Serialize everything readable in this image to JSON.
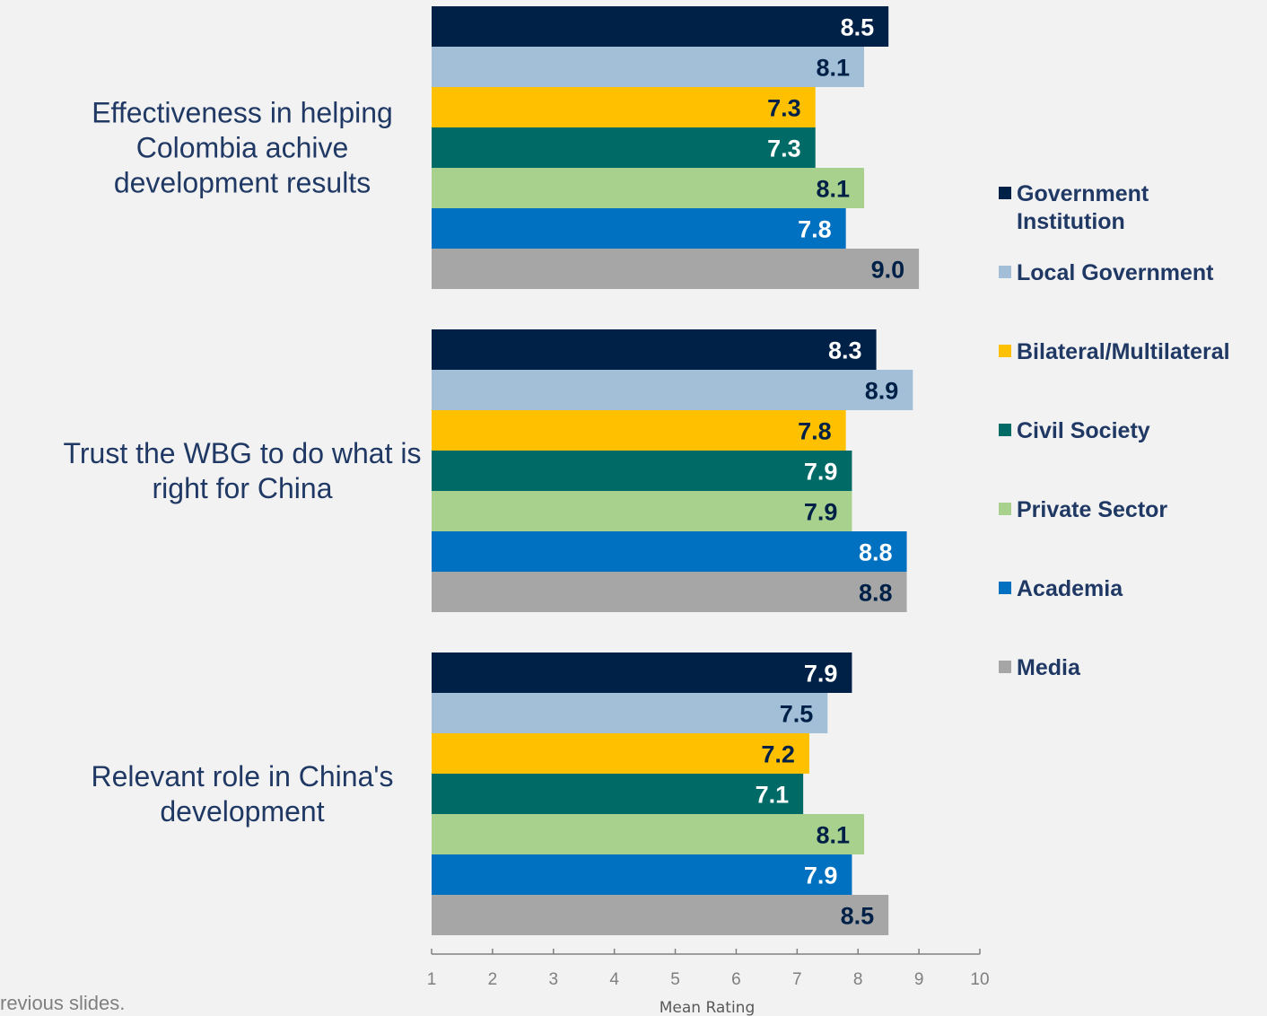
{
  "chart_data": {
    "type": "bar",
    "orientation": "horizontal",
    "categories": [
      "Effectiveness in helping Colombia achive development results",
      "Trust the WBG to do what is right for China",
      "Relevant role in China's development"
    ],
    "series": [
      {
        "name": "Government Institution",
        "color": "#002147",
        "label_color": "#ffffff",
        "values": [
          8.5,
          8.3,
          7.9
        ]
      },
      {
        "name": "Local Government",
        "color": "#a3bed7",
        "label_color": "#002147",
        "values": [
          8.1,
          8.9,
          7.5
        ]
      },
      {
        "name": "Bilateral/Multilateral",
        "color": "#ffc000",
        "label_color": "#002147",
        "values": [
          7.3,
          7.8,
          7.2
        ]
      },
      {
        "name": "Civil Society",
        "color": "#006a66",
        "label_color": "#ffffff",
        "values": [
          7.3,
          7.9,
          7.1
        ]
      },
      {
        "name": "Private Sector",
        "color": "#a9d18e",
        "label_color": "#002147",
        "values": [
          8.1,
          7.9,
          8.1
        ]
      },
      {
        "name": "Academia",
        "color": "#0070c0",
        "label_color": "#ffffff",
        "values": [
          7.8,
          8.8,
          7.9
        ]
      },
      {
        "name": "Media",
        "color": "#a6a6a6",
        "label_color": "#002147",
        "values": [
          9.0,
          8.8,
          8.5
        ]
      }
    ],
    "value_labels": [
      [
        "8.5",
        "8.1",
        "7.3",
        "7.3",
        "8.1",
        "7.8",
        "9.0"
      ],
      [
        "8.3",
        "8.9",
        "7.8",
        "7.9",
        "7.9",
        "8.8",
        "8.8"
      ],
      [
        "7.9",
        "7.5",
        "7.2",
        "7.1",
        "8.1",
        "7.9",
        "8.5"
      ]
    ],
    "category_lines": [
      [
        "Effectiveness in helping",
        "Colombia achive",
        "development results"
      ],
      [
        "Trust the WBG to do what is",
        "right for China"
      ],
      [
        "Relevant role in China's",
        "development"
      ]
    ],
    "legend_lines": [
      [
        "Government",
        "Institution"
      ],
      [
        "Local Government"
      ],
      [
        "Bilateral/Multilateral"
      ],
      [
        "Civil Society"
      ],
      [
        "Private Sector"
      ],
      [
        "Academia"
      ],
      [
        "Media"
      ]
    ],
    "xlim": [
      1,
      10
    ],
    "xticks": [
      "1",
      "2",
      "3",
      "4",
      "5",
      "6",
      "7",
      "8",
      "9",
      "10"
    ],
    "xlabel": "Mean Rating",
    "legend_position": "right",
    "grid": false
  },
  "footnote": "revious slides."
}
